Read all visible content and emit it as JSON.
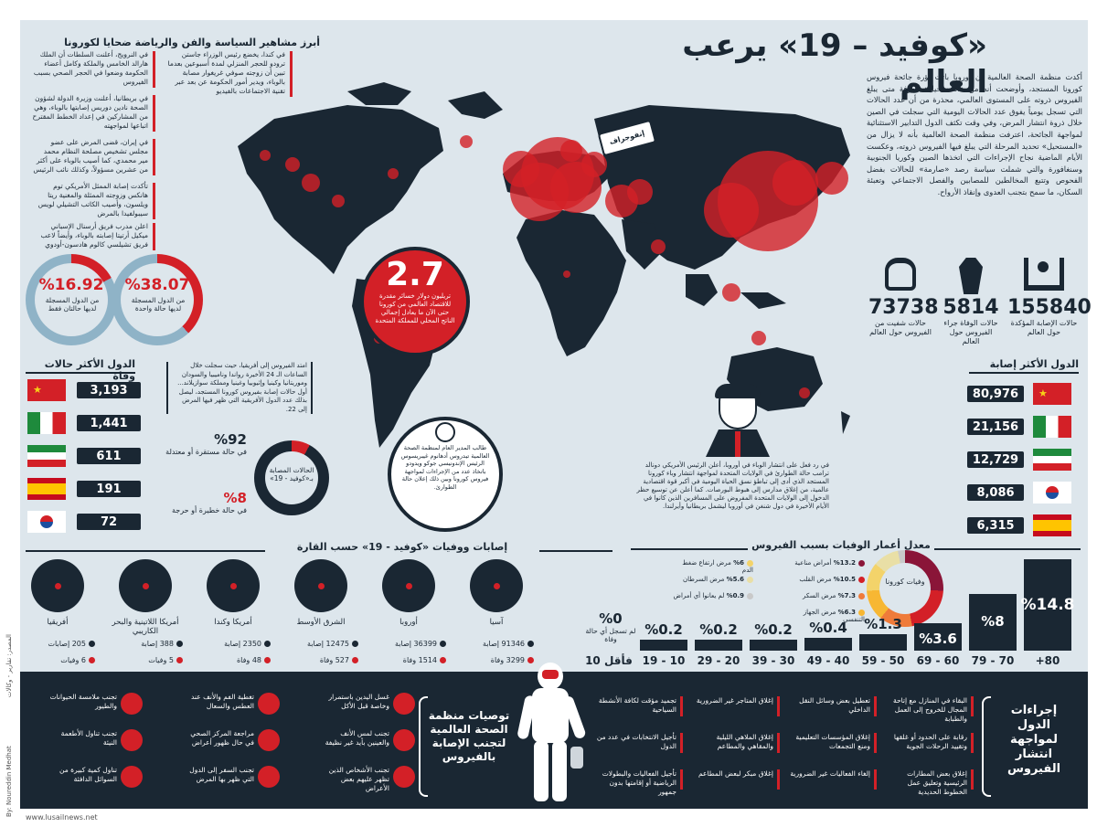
{
  "title": "«كوفيد – 19» يرعب العالم",
  "intro": "أكدت منظمة الصحة العالمية أن أوروبا باتت بؤرة جائحة فيروس كورونا المستجد، وأوضحت أنه من «المستحيل» معرفة متى يبلغ الفيروس ذروته على المستوى العالمي، محذرة من أن عدد الحالات التي تسجل يومياً يفوق عدد الحالات اليومية التي سجلت في الصين خلال ذروة انتشار المرض، وفي وقت تكثف الدول التدابير الاستثنائية لمواجهة الجائحة، اعترفت منظمة الصحة العالمية بأنه لا يزال من «المستحيل» تحديد المرحلة التي يبلغ فيها الفيروس ذروته، وعكست الأيام الماضية نجاح الإجراءات التي اتخذها الصين وكوريا الجنوبية وسنغافورة والتي شملت سياسة رصد «صارمة» للحالات بفضل الفحوص وتتبع المخالطين للمصابين والفصل الاجتماعي وتعبئة السكان، ما سمح بتجنب العدوى وإنقاذ الأرواح.",
  "badge": "إنفوجراف",
  "left_heading": "أبرز مشاهير السياسة والفن والرياضة ضحايا لكورونا",
  "left_items": [
    "في كندا، يخضع رئيس الوزراء جاستن ترودو للحجر المنزلي لمدة أسبوعين بعدما تبين أن زوجته صوفي غريغوار مصابة بالوباء، ويدير أمور الحكومة عن بعد عبر تقنية الاجتماعات بالفيديو",
    "في النرويج، أعلنت السلطات أن الملك هارالد الخامس والملكة وكامل أعضاء الحكومة وضعوا في الحجر الصحي بسبب الفيروس",
    "في بريطانيا، أعلنت وزيرة الدولة لشؤون الصحة نادين دوريس إصابتها بالوباء، وهي من المشاركين في إعداد الخطط المقترح اتباعها لمواجهته",
    "في إيران، قضى المرض على عضو مجلس تشخيص مصلحة النظام محمد مير محمدي، كما أصيب بالوباء على أكثر من عشرين مسؤولاً، وكذلك نائب الرئيس",
    "تأكدت إصابة الممثل الأمريكي توم هانكس وزوجته الممثلة والمغنية ريتا ويلسون، وأصيب الكاتب التشيلي لويس سيبولفيدا بالمرض",
    "اعلن مدرب فريق أرسنال الإسباني ميكيل أرتيتا إصابته بالوباء، وأيضاً لاعب فريق تشيلسي كالوم هادسون-أودوي"
  ],
  "pct1": {
    "value": "%38.07",
    "label": "من الدول المسجلة لديها حالة واحدة"
  },
  "pct2": {
    "value": "%16.92",
    "label": "من الدول المسجلة لديها حالتان فقط"
  },
  "loss": {
    "value": "2.7",
    "text": "تريليون دولار خسائر مقدرة للاقتصاد العالمي من كورونا حتى الآن ما يعادل إجمالي الناتج المحلي للمملكة المتحدة"
  },
  "stats": [
    {
      "value": "155840",
      "label": "حالات الإصابة المؤكدة حول العالم",
      "icon": "patient-bed-icon"
    },
    {
      "value": "5814",
      "label": "حالات الوفاة جراء الفيروس حول العالم",
      "icon": "coffin-icon"
    },
    {
      "value": "73738",
      "label": "حالات شفيت من الفيروس حول العالم",
      "icon": "lungs-icon"
    }
  ],
  "deaths_heading": "الدول الأكثر حالات وفاة",
  "deaths": [
    {
      "flag": "china",
      "value": "3,193"
    },
    {
      "flag": "italy",
      "value": "1,441"
    },
    {
      "flag": "iran",
      "value": "611"
    },
    {
      "flag": "spain",
      "value": "191"
    },
    {
      "flag": "korea",
      "value": "72"
    }
  ],
  "cases_heading": "الدول الأكثر إصابة",
  "cases": [
    {
      "flag": "china",
      "value": "80,976"
    },
    {
      "flag": "italy",
      "value": "21,156"
    },
    {
      "flag": "iran",
      "value": "12,729"
    },
    {
      "flag": "korea",
      "value": "8,086"
    },
    {
      "flag": "spain",
      "value": "6,315"
    }
  ],
  "africa_note": "امتد الفيروس إلى أفريقيا، حيث سجلت خلال الساعات الـ 24 الأخيرة رواندا وناميبيا والسودان وموريتانيا وكينيا وإثيوبيا وغينيا ومملكة سوازيلاند... أول حالات إصابة بفيروس كورونا المستجد، ليصل بذلك عدد الدول الأفريقية التي ظهر فيها المرض إلى 22.",
  "stable": {
    "value": "%92",
    "label": "في حالة مستقرة أو معتدلة"
  },
  "critical": {
    "value": "%8",
    "label": "في حالة خطيرة أو حرجة"
  },
  "donut_label": "الحالات المصابة بـ«كوفيد - 19»",
  "who_note": "طالب المدير العام لمنظمة الصحة العالمية تيدروس أدهانوم غيبريسوس الرئيس الإندونيسي جوكو ويدودو باتخاذ عدد من الإجراءات لمواجهة فيروس كورونا وبين ذلك إعلان حالة الطوارئ.",
  "trump_note": "في رد فعل على انتشار الوباء في أوروبا، أعلن الرئيس الأمريكي دونالد ترامب حالة الطوارئ في الولايات المتحدة لمواجهة انتشار وباء كورونا المستجد الذي أدى إلى تباطؤ نسق الحياة اليومية في أكبر قوة اقتصادية عالمية، من إغلاق مدارس إلى هبوط البورصات. كما أعلن عن توسيع حظر الدخول إلى الولايات المتحدة المفروض على المسافرين الذين كانوا في الأيام الأخيرة في دول شنغن في أوروبا ليشمل بريطانيا وأيرلندا.",
  "continents_heading": "إصابات ووفيات «كوفيد - 19» حسب القارة",
  "continents": [
    {
      "name": "آسيا",
      "cases": "91346 إصابة",
      "deaths": "3299 وفاة"
    },
    {
      "name": "أوروبا",
      "cases": "36399 إصابة",
      "deaths": "1514 وفاة"
    },
    {
      "name": "الشرق الأوسط",
      "cases": "12475 إصابة",
      "deaths": "527 وفاة"
    },
    {
      "name": "أمريكا وكندا",
      "cases": "2350 إصابة",
      "deaths": "48 وفاة"
    },
    {
      "name": "أمريكا اللاتينية والبحر الكاريبي",
      "cases": "388 إصابة",
      "deaths": "5 وفيات"
    },
    {
      "name": "أفريقيا",
      "cases": "205 إصابات",
      "deaths": "6 وفيات"
    }
  ],
  "age_heading": "معدل أعمار الوفيات بسبب الفيروس",
  "age_chart": {
    "categories": [
      "+80",
      "79 - 70",
      "69 - 60",
      "59 - 50",
      "49 - 40",
      "39 - 30",
      "29 - 20",
      "19 - 10",
      "10 فأقل"
    ],
    "values": [
      "%14.8",
      "%8",
      "%3.6",
      "%1.3",
      "%0.4",
      "%0.2",
      "%0.2",
      "%0.2",
      "%0"
    ],
    "note": "لم تسجل أي حالة وفاة"
  },
  "disease_donut_label": "وفيات كورونا",
  "diseases": [
    {
      "value": "%13.2",
      "label": "أمراض مناعية",
      "color": "#8a1538"
    },
    {
      "value": "%10.5",
      "label": "مرض القلب",
      "color": "#d32027"
    },
    {
      "value": "%7.3",
      "label": "مرض السكر",
      "color": "#ef7b3a"
    },
    {
      "value": "%6.3",
      "label": "مرض الجهاز التنفسي",
      "color": "#f7b733"
    },
    {
      "value": "%6",
      "label": "مرض ارتفاع ضغط الدم",
      "color": "#f3d36a"
    },
    {
      "value": "%5.6",
      "label": "مرض السرطان",
      "color": "#e9dfa6"
    },
    {
      "value": "%0.9",
      "label": "لم يعانوا أي أمراض",
      "color": "#c9c9c9"
    }
  ],
  "who_recs_heading": "توصيات منظمة الصحة العالمية لتجنب الإصابة بالفيروس",
  "who_recs": [
    "غسل اليدين باستمرار وخاصة قبل الأكل",
    "تجنب لمس الأنف والعينين بأيد غير نظيفة",
    "تجنب الأشخاص الذين تظهر عليهم بعض الأعراض",
    "تغطية الفم والأنف عند العطس والسعال",
    "مراجعة المركز الصحي في حال ظهور أعراض",
    "تجنب السفر إلى الدول التي ظهر بها المرض",
    "تجنب ملامسة الحيوانات والطيور",
    "تجنب تناول الأطعمة النيئة",
    "تناول كمية كبيرة من السوائل الدافئة"
  ],
  "measures_heading": "إجراءات الدول لمواجهة انتشار الفيروس",
  "measures": [
    "البقاء في المنازل مع إتاحة المجال للخروج إلى العمل والطبابة",
    "رقابة على الحدود أو غلقها وتقييد الرحلات الجوية",
    "إغلاق بعض المطارات الرئيسية وتعليق عمل الخطوط الحديدية",
    "تعطيل بعض وسائل النقل الداخلي",
    "إغلاق المؤسسات التعليمية ومنع التجمعات",
    "إلغاء الفعاليات غير الضرورية",
    "إغلاق المتاجر غير الضرورية",
    "إغلاق الملاهي الليلية والمقاهي والمطاعم",
    "إغلاق مبكر لبعض المطاعم",
    "تجميد مؤقت لكافة الأنشطة السياحية",
    "تأجيل الانتخابات في عدد من الدول",
    "تأجيل الفعاليات والبطولات الرياضية أو إقامتها بدون جمهور"
  ],
  "source": "المصدر: تقارير - وكالات",
  "credit": "By: Noureddin Medhat",
  "url": "www.lusailnews.net"
}
